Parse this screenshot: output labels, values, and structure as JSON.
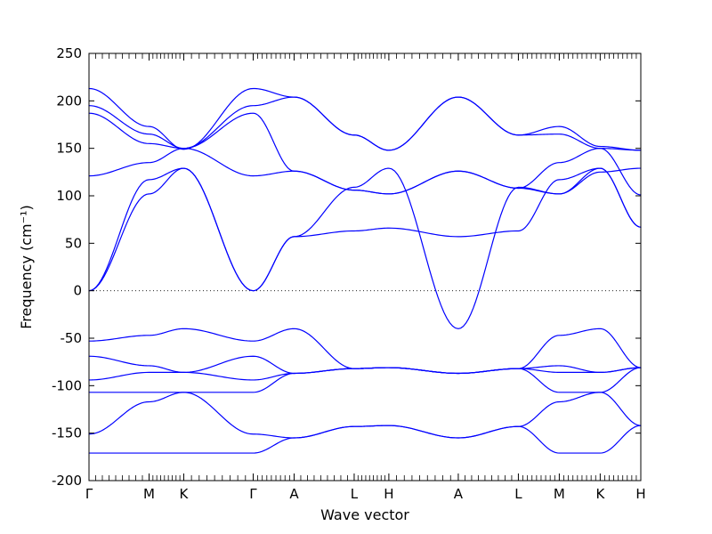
{
  "chart_data": {
    "type": "line",
    "title": "",
    "xlabel": "Wave vector",
    "ylabel": "Frequency (cm⁻¹)",
    "ylim": [
      -200,
      250
    ],
    "yticks": [
      -200,
      -150,
      -100,
      -50,
      0,
      50,
      100,
      150,
      200,
      250
    ],
    "grid": false,
    "reference_line": {
      "y": 0,
      "style": "dotted"
    },
    "line_color": "#0000ff",
    "high_symmetry_points": [
      {
        "label": "Γ",
        "x": 0
      },
      {
        "label": "M",
        "x": 0.577
      },
      {
        "label": "K",
        "x": 0.91
      },
      {
        "label": "Γ",
        "x": 1.577
      },
      {
        "label": "A",
        "x": 1.97
      },
      {
        "label": "L",
        "x": 2.547
      },
      {
        "label": "H",
        "x": 2.88
      },
      {
        "label": "A",
        "x": 3.547
      },
      {
        "label": "L",
        "x": 4.124
      },
      {
        "label": "M",
        "x": 4.517
      },
      {
        "label": "K",
        "x": 4.91
      },
      {
        "label": "H",
        "x": 5.3
      }
    ],
    "xlim": [
      0,
      5.3
    ],
    "series": [
      {
        "x": [
          0,
          0.577,
          0.91,
          1.577,
          1.97,
          2.547,
          2.88,
          3.547,
          4.124,
          4.517,
          4.91,
          5.3
        ],
        "y": [
          213,
          173,
          149,
          213,
          204,
          164,
          148,
          204,
          164,
          173,
          152,
          148
        ]
      },
      {
        "x": [
          0,
          0.577,
          0.91,
          1.577,
          1.97,
          2.547,
          2.88,
          3.547,
          4.124,
          4.517,
          4.91,
          5.3
        ],
        "y": [
          195,
          165,
          150,
          195,
          204,
          164,
          148,
          204,
          164,
          165,
          150,
          148
        ]
      },
      {
        "x": [
          0,
          0.577,
          0.91,
          1.577,
          1.97,
          2.547,
          2.88,
          3.547,
          4.124,
          4.517,
          4.91,
          5.3
        ],
        "y": [
          187,
          155,
          150,
          187,
          126,
          106,
          102,
          126,
          108,
          102,
          125,
          129
        ]
      },
      {
        "x": [
          0,
          0.577,
          0.91,
          1.577,
          1.97,
          2.547,
          2.88,
          3.547,
          4.124,
          4.517,
          4.91,
          5.3
        ],
        "y": [
          121,
          135,
          150,
          121,
          126,
          106,
          102,
          126,
          108,
          135,
          150,
          101
        ]
      },
      {
        "x": [
          0,
          0.577,
          0.91,
          1.577,
          1.97,
          2.547,
          2.88,
          3.547,
          4.124,
          4.517,
          4.91,
          5.3
        ],
        "y": [
          0,
          117,
          129,
          0,
          57,
          63,
          66,
          57,
          63,
          117,
          129,
          67
        ]
      },
      {
        "x": [
          0,
          0.577,
          0.91,
          1.577,
          1.97,
          2.547,
          2.88,
          3.547,
          4.124,
          4.517,
          4.91,
          5.3
        ],
        "y": [
          0,
          102,
          129,
          0,
          57,
          109,
          129,
          -40,
          109,
          102,
          129,
          67
        ]
      },
      {
        "x": [
          0,
          0.577,
          0.91,
          1.577,
          1.97,
          2.547,
          2.88,
          3.547,
          4.124,
          4.517,
          4.91,
          5.3
        ],
        "y": [
          -53,
          -47,
          -40,
          -53,
          -40,
          -82,
          -81,
          -87,
          -82,
          -47,
          -40,
          -81
        ]
      },
      {
        "x": [
          0,
          0.577,
          0.91,
          1.577,
          1.97,
          2.547,
          2.88,
          3.547,
          4.124,
          4.517,
          4.91,
          5.3
        ],
        "y": [
          -69,
          -79,
          -86,
          -69,
          -87,
          -82,
          -81,
          -87,
          -82,
          -79,
          -86,
          -81
        ]
      },
      {
        "x": [
          0,
          0.577,
          0.91,
          1.577,
          1.97,
          2.547,
          2.88,
          3.547,
          4.124,
          4.517,
          4.91,
          5.3
        ],
        "y": [
          -94,
          -86,
          -86,
          -94,
          -87,
          -82,
          -81,
          -87,
          -82,
          -86,
          -86,
          -81
        ]
      },
      {
        "x": [
          0,
          0.577,
          0.91,
          1.577,
          1.97,
          2.547,
          2.88,
          3.547,
          4.124,
          4.517,
          4.91,
          5.3
        ],
        "y": [
          -107,
          -107,
          -107,
          -107,
          -87,
          -82,
          -81,
          -87,
          -82,
          -107,
          -107,
          -81
        ]
      },
      {
        "x": [
          0,
          0.577,
          0.91,
          1.577,
          1.97,
          2.547,
          2.88,
          3.547,
          4.124,
          4.517,
          4.91,
          5.3
        ],
        "y": [
          -151,
          -117,
          -107,
          -151,
          -155,
          -143,
          -142,
          -155,
          -143,
          -117,
          -107,
          -142
        ]
      },
      {
        "x": [
          0,
          0.577,
          0.91,
          1.577,
          1.97,
          2.547,
          2.88,
          3.547,
          4.124,
          4.517,
          4.91,
          5.3
        ],
        "y": [
          -171,
          -171,
          -171,
          -171,
          -155,
          -143,
          -142,
          -155,
          -143,
          -171,
          -171,
          -142
        ]
      }
    ]
  }
}
